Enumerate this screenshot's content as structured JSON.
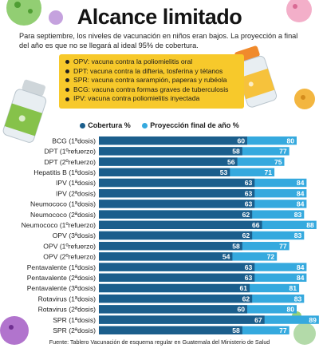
{
  "header": {
    "title": "Alcance limitado",
    "subtitle": "Para septiembre, los niveles de vacunación en niños eran bajos. La proyección a final del año es que no se llegará al ideal 95% de cobertura."
  },
  "legend_notes": [
    "OPV: vacuna contra la poliomielitis oral",
    "DPT: vacuna contra la difteria, tosferina y tétanos",
    "SPR: vacuna contra sarampión, paperas y rubéola",
    "BCG: vacuna contra formas graves de tuberculosis",
    "IPV: vacuna contra poliomielitis inyectada"
  ],
  "colors": {
    "cobertura": "#1b5e8c",
    "proyeccion": "#35a9de",
    "legend_box": "#f7c92b"
  },
  "chart_data": {
    "type": "bar",
    "orientation": "horizontal",
    "grid": false,
    "legend_placement": "top",
    "categories": [
      "BCG (1ªdosis)",
      "DPT (1ºrefuerzo)",
      "DPT (2ºrefuerzo)",
      "Hepatitis B (1ªdosis)",
      "IPV (1ªdosis)",
      "IPV (2ªdosis)",
      "Neumococo (1ªdosis)",
      "Neumococo (2ªdosis)",
      "Neumococo (1ºrefuerzo)",
      "OPV (3ªdosis)",
      "OPV (1ºrefuerzo)",
      "OPV (2ºrefuerzo)",
      "Pentavalente (1ªdosis)",
      "Pentavalente (2ªdosis)",
      "Pentavalente (3ªdosis)",
      "Rotavirus (1ªdosis)",
      "Rotavirus (2ªdosis)",
      "SPR (1ªdosis)",
      "SPR (2ªdosis)"
    ],
    "series": [
      {
        "name": "Cobertura %",
        "values": [
          60,
          58,
          56,
          53,
          63,
          63,
          63,
          62,
          66,
          62,
          58,
          54,
          63,
          63,
          61,
          62,
          60,
          67,
          58
        ]
      },
      {
        "name": "Proyección final de año %",
        "values": [
          80,
          77,
          75,
          71,
          84,
          84,
          84,
          83,
          88,
          83,
          77,
          72,
          84,
          84,
          81,
          83,
          80,
          89,
          77
        ]
      }
    ]
  },
  "source": "Fuente: Tablero Vacunación de esquema regular en Guatemala del Ministerio de Salud"
}
